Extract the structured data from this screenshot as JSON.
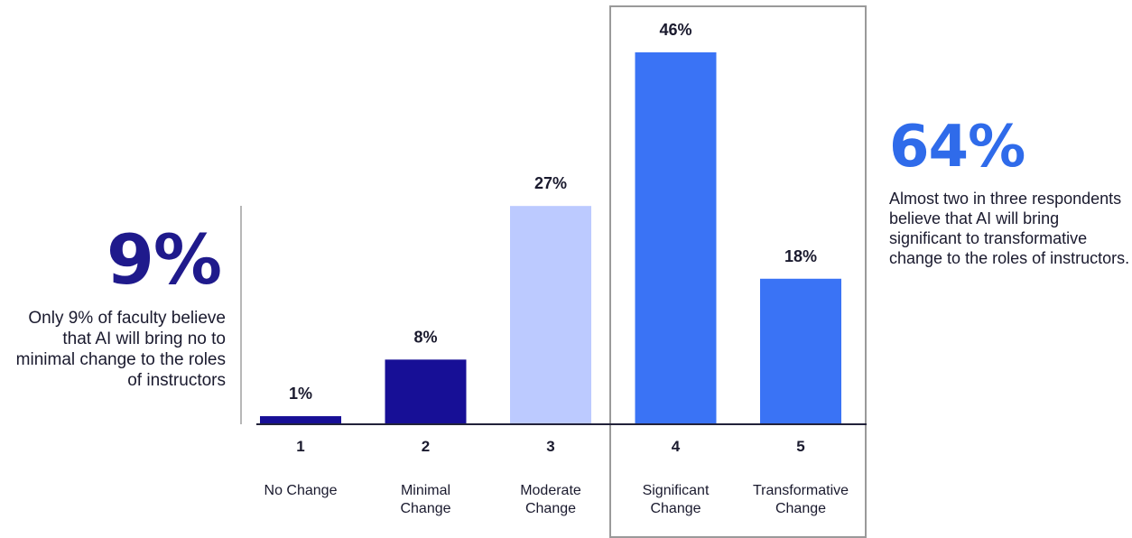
{
  "left_callout": {
    "stat": "9%",
    "text": "Only 9% of faculty believe that AI will bring no to minimal change to the roles of instructors"
  },
  "right_callout": {
    "stat": "64%",
    "text": "Almost two in three respondents believe that AI will bring significant to transformative change to the roles of instructors."
  },
  "colors": {
    "dark_navy": "#170f96",
    "light_periwinkle": "#bccaff",
    "bright_blue": "#3a73f5",
    "left_stat": "#1f1a8c",
    "right_stat": "#2f6bea"
  },
  "chart_data": {
    "type": "bar",
    "categories": [
      "1",
      "2",
      "3",
      "4",
      "5"
    ],
    "category_labels": [
      [
        "No Change"
      ],
      [
        "Minimal",
        "Change"
      ],
      [
        "Moderate",
        "Change"
      ],
      [
        "Significant",
        "Change"
      ],
      [
        "Transformative",
        "Change"
      ]
    ],
    "values": [
      1,
      8,
      27,
      46,
      18
    ],
    "value_labels": [
      "1%",
      "8%",
      "27%",
      "46%",
      "18%"
    ],
    "bar_colors": [
      "#170f96",
      "#170f96",
      "#bccaff",
      "#3a73f5",
      "#3a73f5"
    ],
    "highlighted_categories": [
      "4",
      "5"
    ],
    "ylim": [
      0,
      46
    ],
    "grid": false,
    "legend": "none"
  }
}
